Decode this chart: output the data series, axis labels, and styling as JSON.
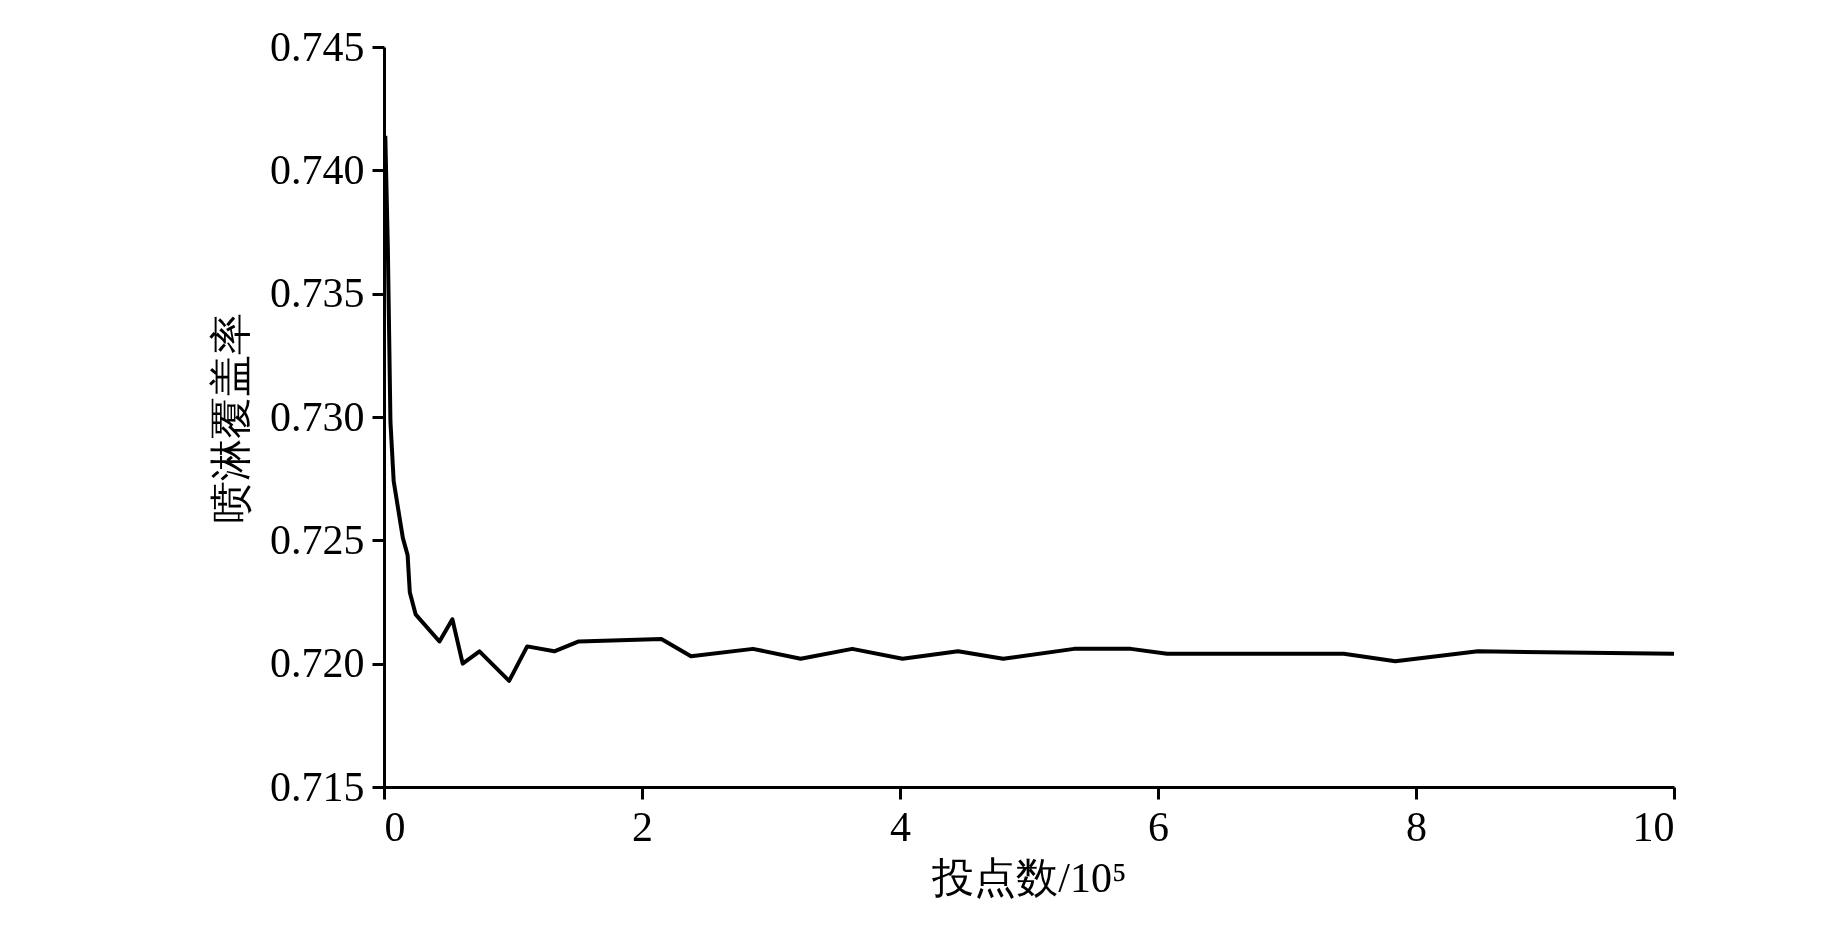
{
  "chart_data": {
    "type": "line",
    "xlabel": "投点数/10⁵",
    "ylabel": "喷淋覆盖率",
    "x": [
      0.01,
      0.03,
      0.05,
      0.075,
      0.146,
      0.183,
      0.2,
      0.245,
      0.43,
      0.53,
      0.61,
      0.74,
      0.97,
      1.11,
      1.32,
      1.51,
      2.15,
      2.38,
      2.86,
      3.23,
      3.63,
      4.02,
      4.45,
      4.8,
      5.35,
      5.79,
      6.07,
      7.44,
      7.84,
      8.48,
      10.0
    ],
    "series": [
      {
        "color": "#000000",
        "values": [
          0.7414,
          0.7368,
          0.7298,
          0.7274,
          0.7251,
          0.7244,
          0.7229,
          0.722,
          0.7209,
          0.7218,
          0.72,
          0.7205,
          0.7193,
          0.7207,
          0.7205,
          0.7209,
          0.721,
          0.7203,
          0.7206,
          0.7202,
          0.7206,
          0.7202,
          0.7205,
          0.7202,
          0.7206,
          0.7206,
          0.7204,
          0.7204,
          0.7201,
          0.7205,
          0.7204
        ]
      }
    ],
    "xlim": [
      0,
      10
    ],
    "xticks": [
      0,
      2,
      4,
      6,
      8,
      10
    ],
    "ylim": [
      0.715,
      0.745
    ],
    "yticks": [
      0.715,
      {
        "value": 0.72,
        "label": "0.720"
      },
      0.725,
      {
        "value": 0.73,
        "label": "0.730"
      },
      0.735,
      {
        "value": 0.74,
        "label": "0.740"
      },
      0.745
    ],
    "grid": false,
    "legend": false,
    "marker": "none",
    "line_style": "solid"
  }
}
